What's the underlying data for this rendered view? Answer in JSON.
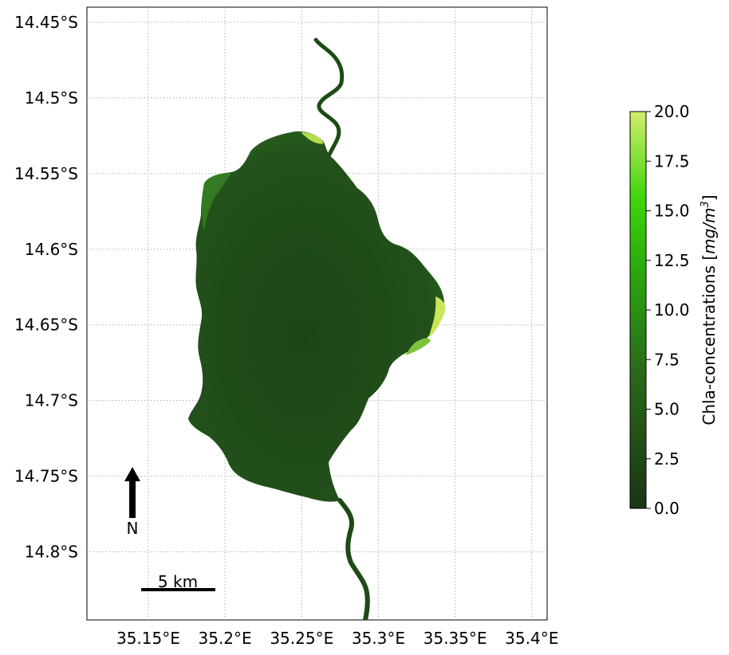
{
  "map": {
    "lat_ticks": [
      "14.45°S",
      "14.5°S",
      "14.55°S",
      "14.6°S",
      "14.65°S",
      "14.7°S",
      "14.75°S",
      "14.8°S"
    ],
    "lon_ticks": [
      "35.15°E",
      "35.2°E",
      "35.25°E",
      "35.3°E",
      "35.35°E",
      "35.4°E"
    ],
    "lat_range": [
      -14.845,
      -14.44
    ],
    "lon_range": [
      35.11,
      35.41
    ],
    "grid": true,
    "grid_style": "dotted",
    "north_arrow_label": "N",
    "scale_bar_label": "5 km",
    "water_color_low": "#1a3a14",
    "water_color_high": "#c8e65a"
  },
  "colorbar": {
    "label_prefix": "Chla-concentrations [",
    "label_unit": "mg/m",
    "label_exp": "3",
    "label_suffix": "]",
    "ticks": [
      "0.0",
      "2.5",
      "5.0",
      "7.5",
      "10.0",
      "12.5",
      "15.0",
      "17.5",
      "20.0"
    ],
    "range": [
      0,
      20
    ],
    "colors": [
      "#1a3514",
      "#2a6a1a",
      "#2ba80e",
      "#3cd60a",
      "#d4ec6c"
    ]
  }
}
